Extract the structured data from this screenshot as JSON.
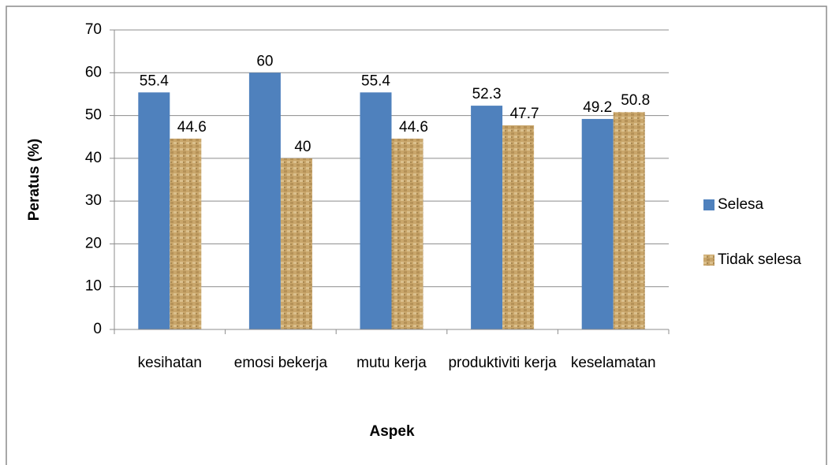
{
  "chart_data": {
    "type": "bar",
    "categories": [
      "kesihatan",
      "emosi bekerja",
      "mutu kerja",
      "produktiviti kerja",
      "keselamatan"
    ],
    "series": [
      {
        "name": "Selesa",
        "color": "#4f81bd",
        "values": [
          55.4,
          60,
          55.4,
          52.3,
          49.2
        ]
      },
      {
        "name": "Tidak selesa",
        "color": "#c9a66b",
        "values": [
          44.6,
          40,
          44.6,
          47.7,
          50.8
        ]
      }
    ],
    "x_label": "Aspek",
    "y_label": "Peratus (%)",
    "ylim": [
      0,
      70
    ],
    "yticks": [
      0,
      10,
      20,
      30,
      40,
      50,
      60,
      70
    ],
    "grid": true,
    "legend": "right",
    "data_labels": true
  }
}
